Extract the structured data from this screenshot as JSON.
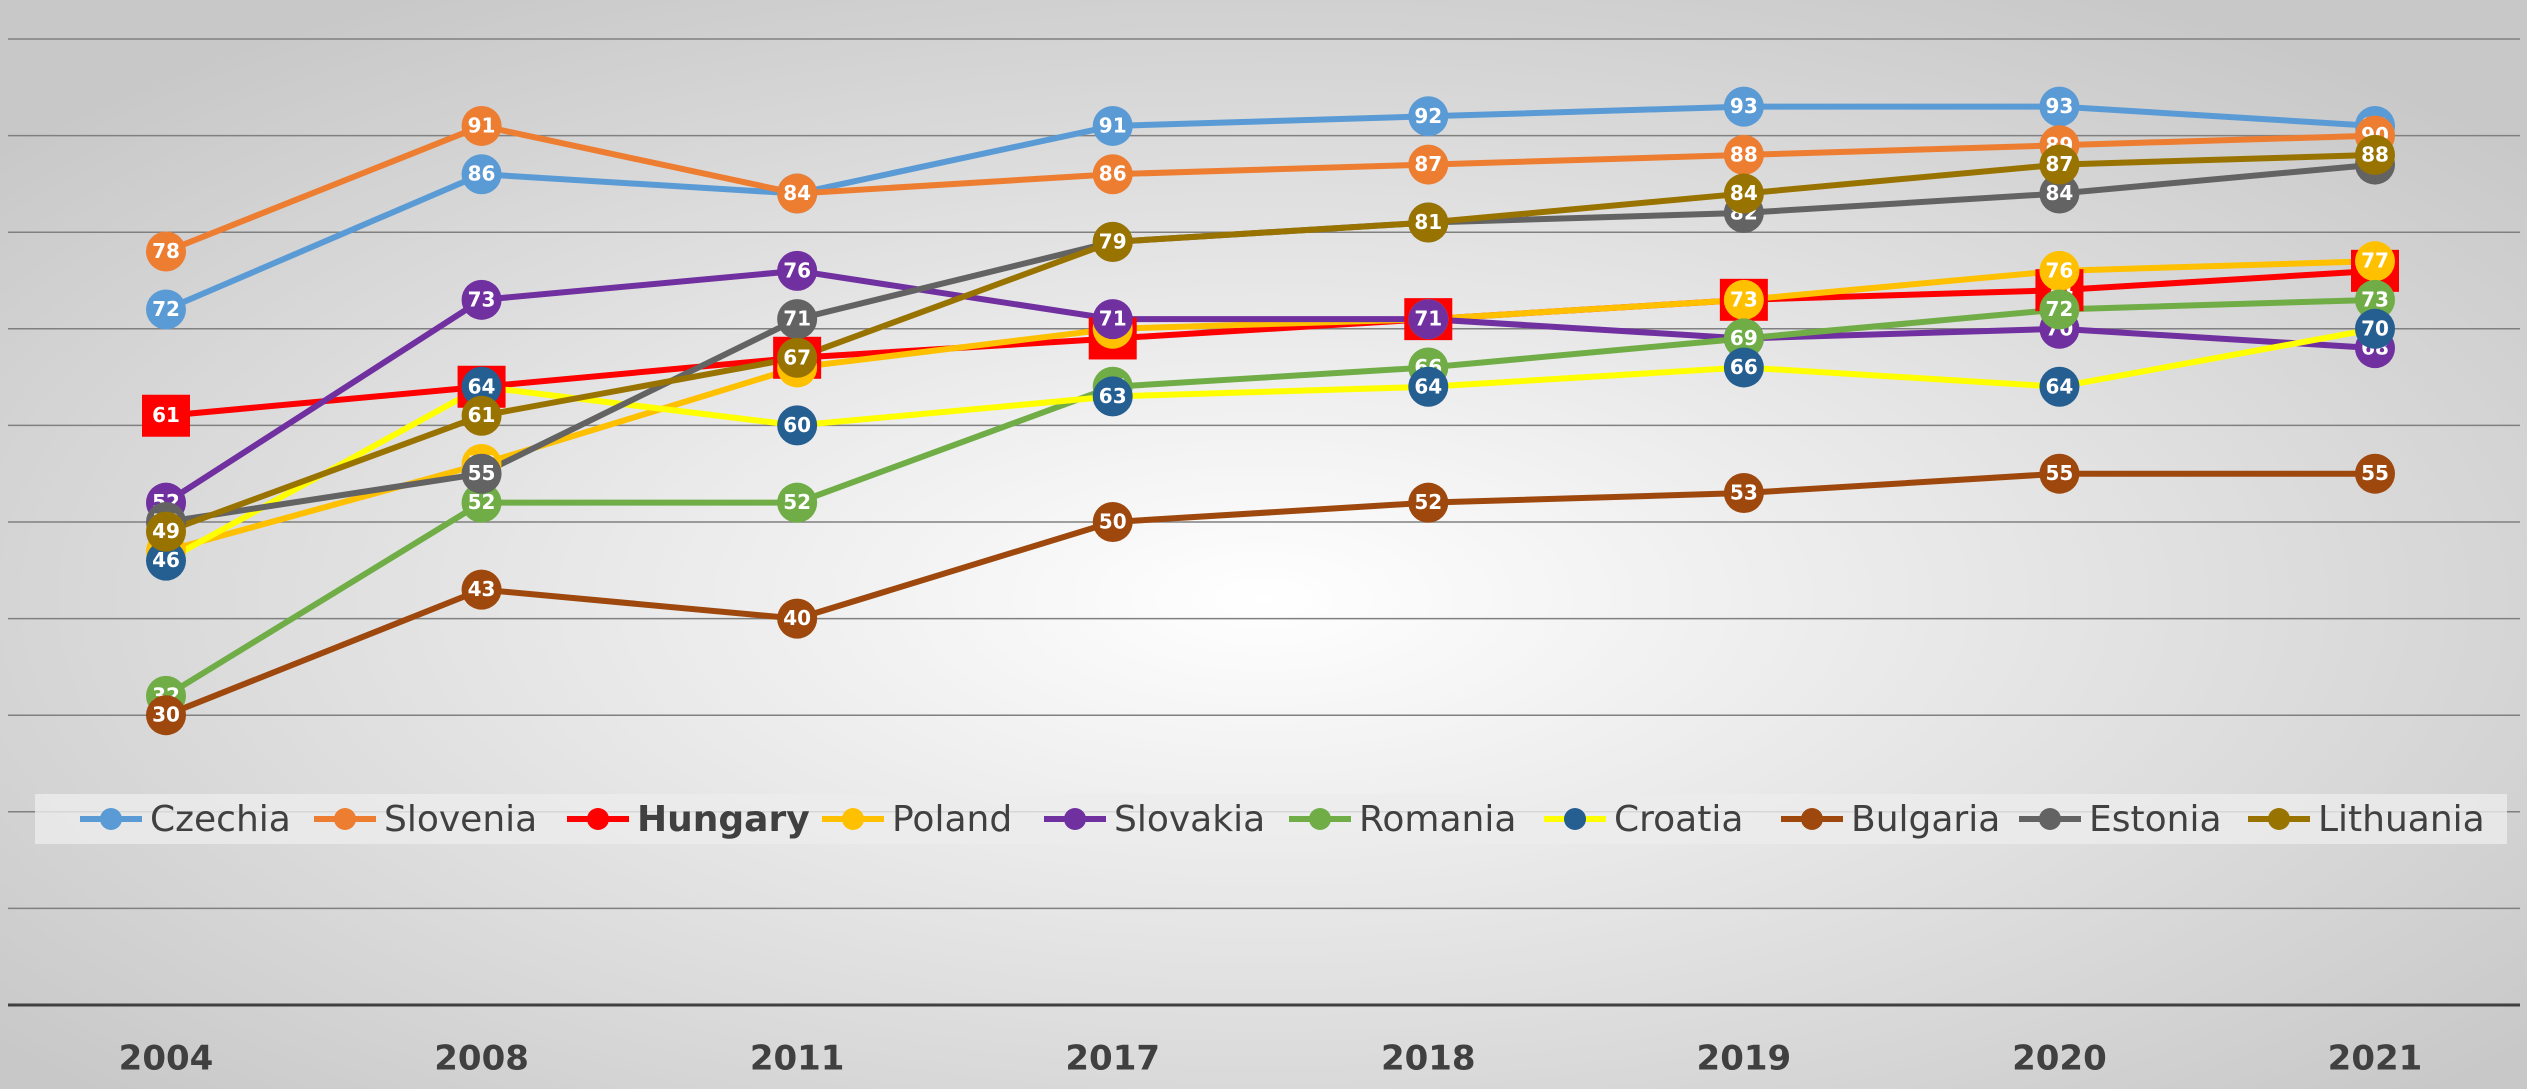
{
  "chart_data": {
    "type": "line",
    "categories": [
      "2004",
      "2008",
      "2011",
      "2017",
      "2018",
      "2019",
      "2020",
      "2021"
    ],
    "ylim": [
      0,
      100
    ],
    "yticks": [
      0,
      10,
      20,
      30,
      40,
      50,
      60,
      70,
      80,
      90,
      100
    ],
    "grid": true,
    "legend": "bottom",
    "series": [
      {
        "name": "Czechia",
        "color": "#5b9bd5",
        "values": [
          72,
          86,
          84,
          91,
          92,
          93,
          93,
          91
        ]
      },
      {
        "name": "Slovenia",
        "color": "#ed7d31",
        "values": [
          78,
          91,
          84,
          86,
          87,
          88,
          89,
          90
        ]
      },
      {
        "name": "Hungary",
        "color": "#ff0000",
        "bold": true,
        "values": [
          61,
          64,
          67,
          69,
          71,
          73,
          74,
          76
        ]
      },
      {
        "name": "Poland",
        "color": "#ffc000",
        "values": [
          47,
          56,
          66,
          70,
          71,
          73,
          76,
          77
        ]
      },
      {
        "name": "Slovakia",
        "color": "#7030a0",
        "values": [
          52,
          73,
          76,
          71,
          71,
          69,
          70,
          68
        ]
      },
      {
        "name": "Romania",
        "color": "#70ad47",
        "values": [
          32,
          52,
          52,
          64,
          66,
          69,
          72,
          73
        ]
      },
      {
        "name": "Croatia",
        "color": "#ffff00",
        "marker_color": "#255e91",
        "values": [
          46,
          64,
          60,
          63,
          64,
          66,
          64,
          70
        ]
      },
      {
        "name": "Bulgaria",
        "color": "#9e480e",
        "values": [
          30,
          43,
          40,
          50,
          52,
          53,
          55,
          55
        ]
      },
      {
        "name": "Estonia",
        "color": "#636363",
        "values": [
          50,
          55,
          71,
          79,
          81,
          82,
          84,
          87
        ]
      },
      {
        "name": "Lithuania",
        "color": "#997300",
        "values": [
          49,
          61,
          67,
          79,
          81,
          84,
          87,
          88
        ]
      }
    ]
  }
}
